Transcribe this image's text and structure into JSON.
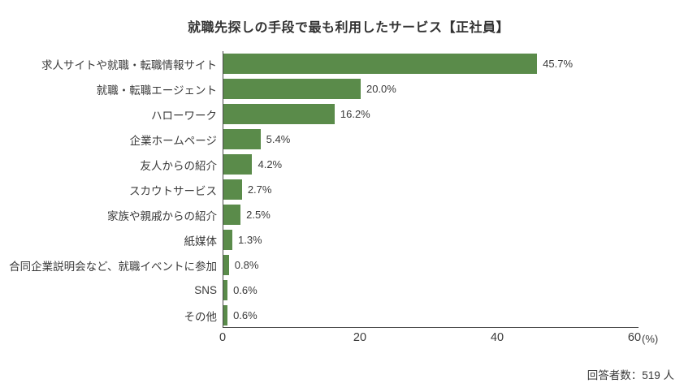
{
  "title": "就職先探しの手段で最も利用したサービス【正社員】",
  "chart_data": {
    "type": "bar",
    "orientation": "horizontal",
    "title": "就職先探しの手段で最も利用したサービス【正社員】",
    "categories": [
      "求人サイトや就職・転職情報サイト",
      "就職・転職エージェント",
      "ハローワーク",
      "企業ホームページ",
      "友人からの紹介",
      "スカウトサービス",
      "家族や親戚からの紹介",
      "紙媒体",
      "合同企業説明会など、就職イベントに参加",
      "SNS",
      "その他"
    ],
    "values": [
      45.7,
      20.0,
      16.2,
      5.4,
      4.2,
      2.7,
      2.5,
      1.3,
      0.8,
      0.6,
      0.6
    ],
    "value_labels": [
      "45.7%",
      "20.0%",
      "16.2%",
      "5.4%",
      "4.2%",
      "2.7%",
      "2.5%",
      "1.3%",
      "0.8%",
      "0.6%",
      "0.6%"
    ],
    "xlim": [
      0,
      60
    ],
    "x_ticks": [
      "0",
      "20",
      "40",
      "60"
    ],
    "x_unit": "(%)",
    "xlabel": "",
    "ylabel": "",
    "grid": false,
    "legend": "none",
    "bar_color": "#5a8b4a",
    "axis_color": "#4a4a4a"
  },
  "footer": {
    "respondents": "回答者数：519 人"
  }
}
